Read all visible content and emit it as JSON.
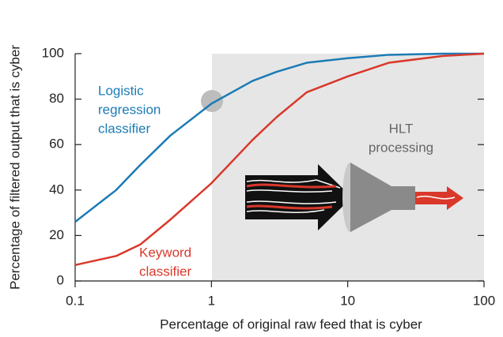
{
  "chart_data": {
    "type": "line",
    "x_label": "Percentage of original raw feed that is cyber",
    "y_label": "Percentage of filtered output that is cyber",
    "log_x": true,
    "xlim": [
      0.1,
      100
    ],
    "xticks": [
      0.1,
      1,
      10,
      100
    ],
    "ylim": [
      0,
      100
    ],
    "yticks": [
      0,
      20,
      40,
      60,
      80,
      100
    ],
    "grid": false,
    "x": [
      0.1,
      0.2,
      0.3,
      0.5,
      1,
      2,
      3,
      5,
      10,
      20,
      50,
      100
    ],
    "series": [
      {
        "name": [
          "Logistic",
          "regression",
          "classifier"
        ],
        "color": "#1b7bb6",
        "values": [
          26,
          40,
          51,
          64,
          78,
          88,
          92,
          96,
          98,
          99.5,
          100,
          100
        ]
      },
      {
        "name": [
          "Keyword",
          "classifier"
        ],
        "color": "#d9382b",
        "values": [
          7,
          11,
          16,
          27,
          43,
          62,
          72,
          83,
          90,
          96,
          99,
          100
        ]
      }
    ],
    "annotations": [
      [
        "HLT",
        "processing"
      ]
    ]
  }
}
